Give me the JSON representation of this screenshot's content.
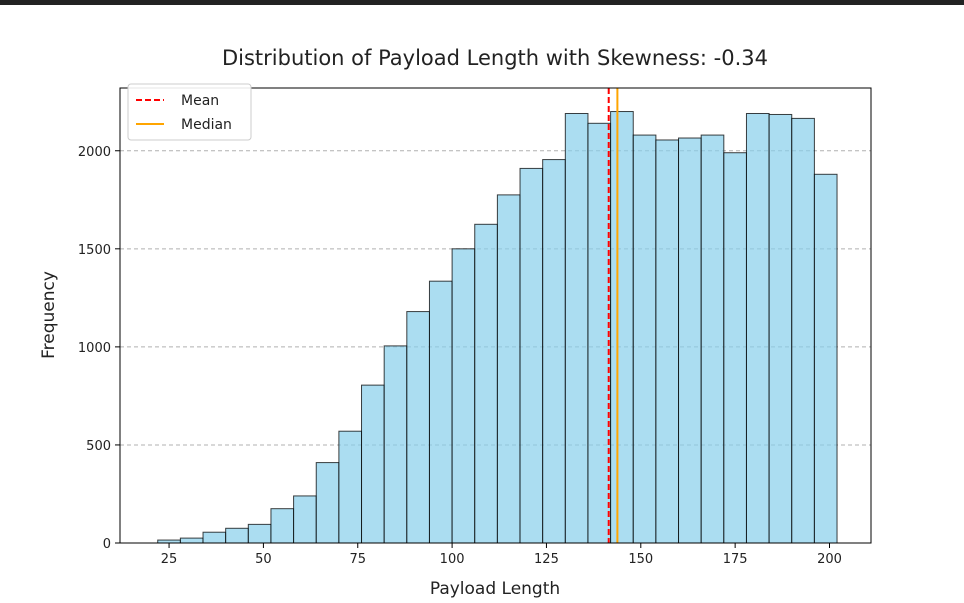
{
  "chart_data": {
    "type": "bar",
    "title": "Distribution of Payload Length with Skewness: -0.34",
    "xlabel": "Payload Length",
    "ylabel": "Frequency",
    "xlim": [
      12,
      211
    ],
    "ylim": [
      0,
      2320
    ],
    "xticks": [
      25,
      50,
      75,
      100,
      125,
      150,
      175,
      200
    ],
    "yticks": [
      0,
      500,
      1000,
      1500,
      2000
    ],
    "bin_edges": [
      22,
      28,
      34,
      40,
      46,
      52,
      58,
      64,
      70,
      76,
      82,
      88,
      94,
      100,
      106,
      112,
      118,
      124,
      130,
      136,
      142,
      148,
      154,
      160,
      166,
      172,
      178,
      184,
      190,
      196,
      202
    ],
    "values": [
      15,
      25,
      55,
      75,
      95,
      175,
      240,
      410,
      570,
      805,
      1005,
      1180,
      1335,
      1500,
      1625,
      1775,
      1910,
      1955,
      2190,
      2140,
      2200,
      2080,
      2055,
      2065,
      2080,
      1990,
      2190,
      2185,
      2165,
      1880
    ],
    "mean": 141.5,
    "median": 143.8,
    "legend": [
      {
        "label": "Mean",
        "color": "#ff0000",
        "style": "dashed"
      },
      {
        "label": "Median",
        "color": "#ffa500",
        "style": "solid"
      }
    ],
    "legend_position": "top-left",
    "grid": "y dashed",
    "bar_color": "#87ceeb",
    "bar_edge_color": "#000000"
  }
}
